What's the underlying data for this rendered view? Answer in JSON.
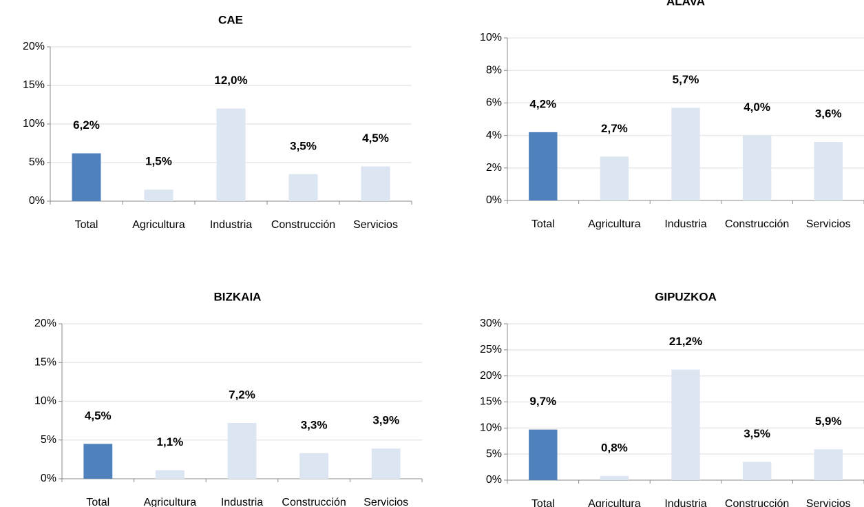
{
  "chart_data": [
    {
      "type": "bar",
      "title": "CAE",
      "categories": [
        "Total",
        "Agricultura",
        "Industria",
        "Construcción",
        "Servicios"
      ],
      "values": [
        6.2,
        1.5,
        12.0,
        3.5,
        4.5
      ],
      "value_labels": [
        "6,2%",
        "1,5%",
        "12,0%",
        "3,5%",
        "4,5%"
      ],
      "colors": [
        "#4f81bd",
        "#dce6f2",
        "#dce6f2",
        "#dce6f2",
        "#dce6f2"
      ],
      "ylim": [
        0,
        20
      ],
      "yticks": [
        {
          "value": 0,
          "label": "0%"
        },
        {
          "value": 5,
          "label": "5%"
        },
        {
          "value": 10,
          "label": "10%"
        },
        {
          "value": 15,
          "label": "15%"
        },
        {
          "value": 20,
          "label": "20%"
        }
      ],
      "grid": true
    },
    {
      "type": "bar",
      "title": "ÁLAVA",
      "categories": [
        "Total",
        "Agricultura",
        "Industria",
        "Construcción",
        "Servicios"
      ],
      "values": [
        4.2,
        2.7,
        5.7,
        4.0,
        3.6
      ],
      "value_labels": [
        "4,2%",
        "2,7%",
        "5,7%",
        "4,0%",
        "3,6%"
      ],
      "colors": [
        "#4f81bd",
        "#dce6f2",
        "#dce6f2",
        "#dce6f2",
        "#dce6f2"
      ],
      "ylim": [
        0,
        10
      ],
      "yticks": [
        {
          "value": 0,
          "label": "0%"
        },
        {
          "value": 2,
          "label": "2%"
        },
        {
          "value": 4,
          "label": "4%"
        },
        {
          "value": 6,
          "label": "6%"
        },
        {
          "value": 8,
          "label": "8%"
        },
        {
          "value": 10,
          "label": "10%"
        }
      ],
      "grid": true
    },
    {
      "type": "bar",
      "title": "BIZKAIA",
      "categories": [
        "Total",
        "Agricultura",
        "Industria",
        "Construcción",
        "Servicios"
      ],
      "values": [
        4.5,
        1.1,
        7.2,
        3.3,
        3.9
      ],
      "value_labels": [
        "4,5%",
        "1,1%",
        "7,2%",
        "3,3%",
        "3,9%"
      ],
      "colors": [
        "#4f81bd",
        "#dce6f2",
        "#dce6f2",
        "#dce6f2",
        "#dce6f2"
      ],
      "ylim": [
        0,
        20
      ],
      "yticks": [
        {
          "value": 0,
          "label": "0%"
        },
        {
          "value": 5,
          "label": "5%"
        },
        {
          "value": 10,
          "label": "10%"
        },
        {
          "value": 15,
          "label": "15%"
        },
        {
          "value": 20,
          "label": "20%"
        }
      ],
      "grid": true
    },
    {
      "type": "bar",
      "title": "GIPUZKOA",
      "categories": [
        "Total",
        "Agricultura",
        "Industria",
        "Construcción",
        "Servicios"
      ],
      "values": [
        9.7,
        0.8,
        21.2,
        3.5,
        5.9
      ],
      "value_labels": [
        "9,7%",
        "0,8%",
        "21,2%",
        "3,5%",
        "5,9%"
      ],
      "colors": [
        "#4f81bd",
        "#dce6f2",
        "#dce6f2",
        "#dce6f2",
        "#dce6f2"
      ],
      "ylim": [
        0,
        30
      ],
      "yticks": [
        {
          "value": 0,
          "label": "0%"
        },
        {
          "value": 5,
          "label": "5%"
        },
        {
          "value": 10,
          "label": "10%"
        },
        {
          "value": 15,
          "label": "15%"
        },
        {
          "value": 20,
          "label": "20%"
        },
        {
          "value": 25,
          "label": "25%"
        },
        {
          "value": 30,
          "label": "30%"
        }
      ],
      "grid": true
    }
  ]
}
